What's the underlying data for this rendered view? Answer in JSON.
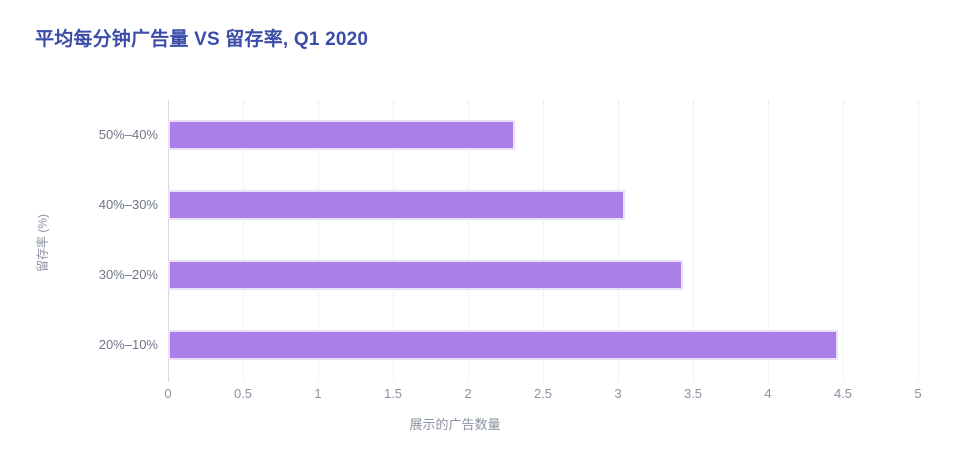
{
  "chart_data": {
    "type": "bar",
    "orientation": "horizontal",
    "title": "平均每分钟广告量 VS 留存率, Q1 2020",
    "categories": [
      "50%–40%",
      "40%–30%",
      "30%–20%",
      "20%–10%"
    ],
    "values": [
      2.3,
      3.03,
      3.42,
      4.45
    ],
    "xlabel": "展示的广告数量",
    "ylabel": "留存率 (%)",
    "xlim": [
      0,
      5
    ],
    "xticks": [
      0,
      0.5,
      1,
      1.5,
      2,
      2.5,
      3,
      3.5,
      4,
      4.5,
      5
    ],
    "grid": "vertical-dotted",
    "legend": "none",
    "colors": {
      "bar_fill": "#a97fe8",
      "bar_halo": "#eae1f9",
      "title_text": "#3b4da8",
      "axis_text": "#8b92a3",
      "category_text": "#6f7689",
      "axis_line": "#d7d9e0",
      "gridline": "#e2e4eb",
      "background": "#ffffff"
    }
  }
}
